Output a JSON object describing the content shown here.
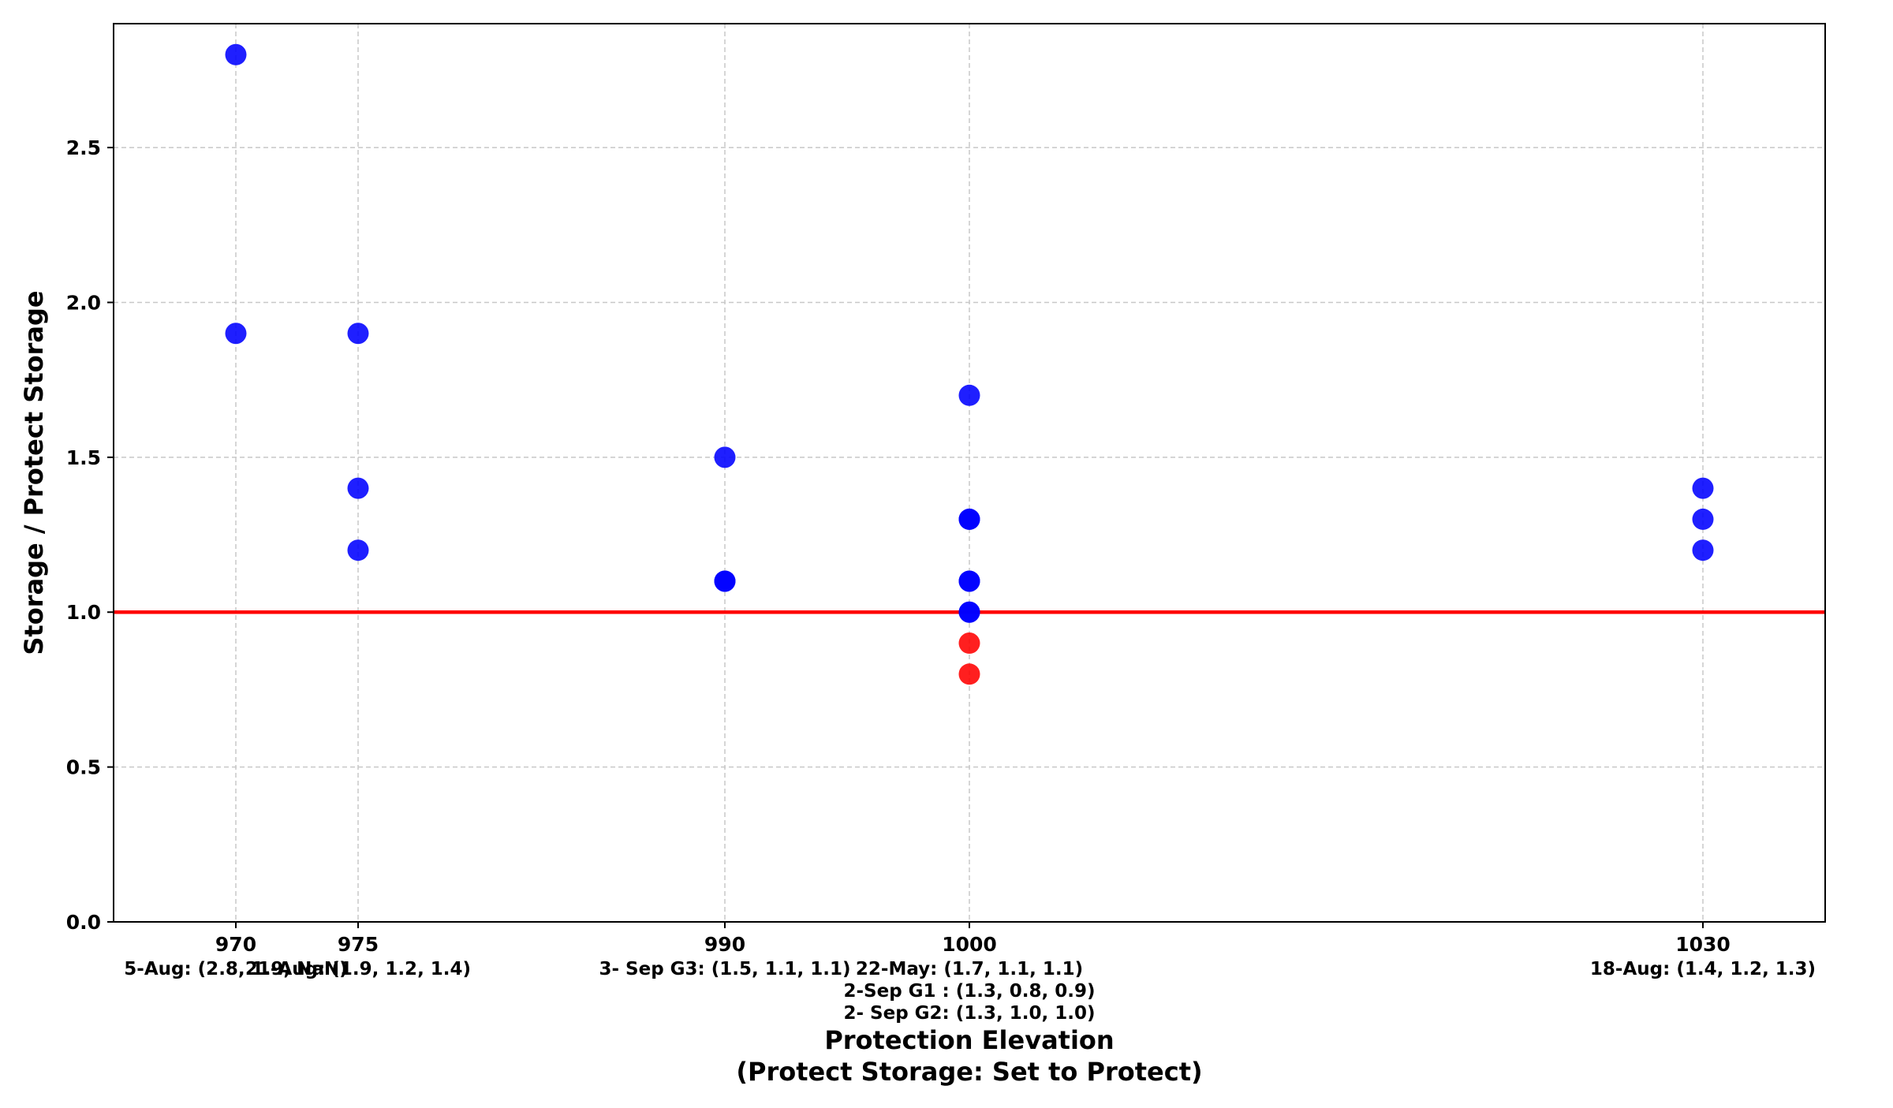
{
  "chart_data": {
    "type": "scatter",
    "title": "",
    "xlabel_lines": [
      "Protection Elevation",
      "(Protect Storage: Set to Protect)"
    ],
    "ylabel": "Storage / Protect Storage",
    "xlim": [
      965,
      1035
    ],
    "ylim": [
      0,
      2.9
    ],
    "xticks": [
      970,
      975,
      990,
      1000,
      1030
    ],
    "yticks": [
      "0.0",
      "0.5",
      "1.0",
      "1.5",
      "2.0",
      "2.5"
    ],
    "grid": true,
    "reference_line": {
      "y": 1.0,
      "color": "#ff0000"
    },
    "colors": {
      "above": "#0000ff",
      "below": "#ff0000"
    },
    "points": [
      {
        "x": 970,
        "y": 2.8
      },
      {
        "x": 970,
        "y": 1.9
      },
      {
        "x": 975,
        "y": 1.9
      },
      {
        "x": 975,
        "y": 1.2
      },
      {
        "x": 975,
        "y": 1.4
      },
      {
        "x": 990,
        "y": 1.5
      },
      {
        "x": 990,
        "y": 1.1
      },
      {
        "x": 990,
        "y": 1.1
      },
      {
        "x": 1000,
        "y": 1.7
      },
      {
        "x": 1000,
        "y": 1.1
      },
      {
        "x": 1000,
        "y": 1.1
      },
      {
        "x": 1000,
        "y": 1.3
      },
      {
        "x": 1000,
        "y": 0.8
      },
      {
        "x": 1000,
        "y": 0.9
      },
      {
        "x": 1000,
        "y": 1.3
      },
      {
        "x": 1000,
        "y": 1.0
      },
      {
        "x": 1000,
        "y": 1.0
      },
      {
        "x": 1030,
        "y": 1.4
      },
      {
        "x": 1030,
        "y": 1.2
      },
      {
        "x": 1030,
        "y": 1.3
      }
    ],
    "annotations": [
      {
        "x": 970,
        "lines": [
          "5-Aug: (2.8, 1.9, NaN)"
        ]
      },
      {
        "x": 975,
        "lines": [
          "21-Aug: (1.9, 1.2, 1.4)"
        ]
      },
      {
        "x": 990,
        "lines": [
          "3- Sep G3: (1.5, 1.1, 1.1)"
        ]
      },
      {
        "x": 1000,
        "lines": [
          "22-May: (1.7, 1.1, 1.1)",
          "2-Sep G1 : (1.3, 0.8, 0.9)",
          "2- Sep G2: (1.3, 1.0, 1.0)"
        ]
      },
      {
        "x": 1030,
        "lines": [
          "18-Aug: (1.4, 1.2, 1.3)"
        ]
      }
    ]
  }
}
